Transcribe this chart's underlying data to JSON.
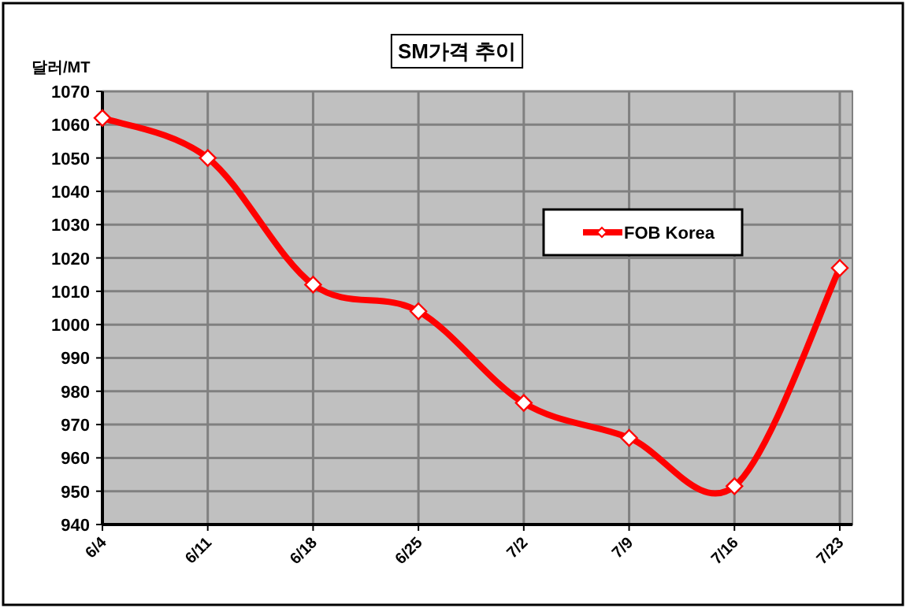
{
  "chart_data": {
    "type": "line",
    "title": "SM가격 추이",
    "ylabel": "달러/MT",
    "categories": [
      "6/4",
      "6/11",
      "6/18",
      "6/25",
      "7/2",
      "7/9",
      "7/16",
      "7/23"
    ],
    "series": [
      {
        "name": "FOB Korea",
        "color": "#ff0000",
        "values": [
          1062,
          1050,
          1012,
          1004,
          976.5,
          966,
          951.5,
          1017
        ]
      }
    ],
    "ylim": [
      940,
      1070
    ],
    "yticks": [
      940,
      950,
      960,
      970,
      980,
      990,
      1000,
      1010,
      1020,
      1030,
      1040,
      1050,
      1060,
      1070
    ],
    "grid": true,
    "legend": "right",
    "marker": "diamond",
    "line_style": "solid"
  }
}
